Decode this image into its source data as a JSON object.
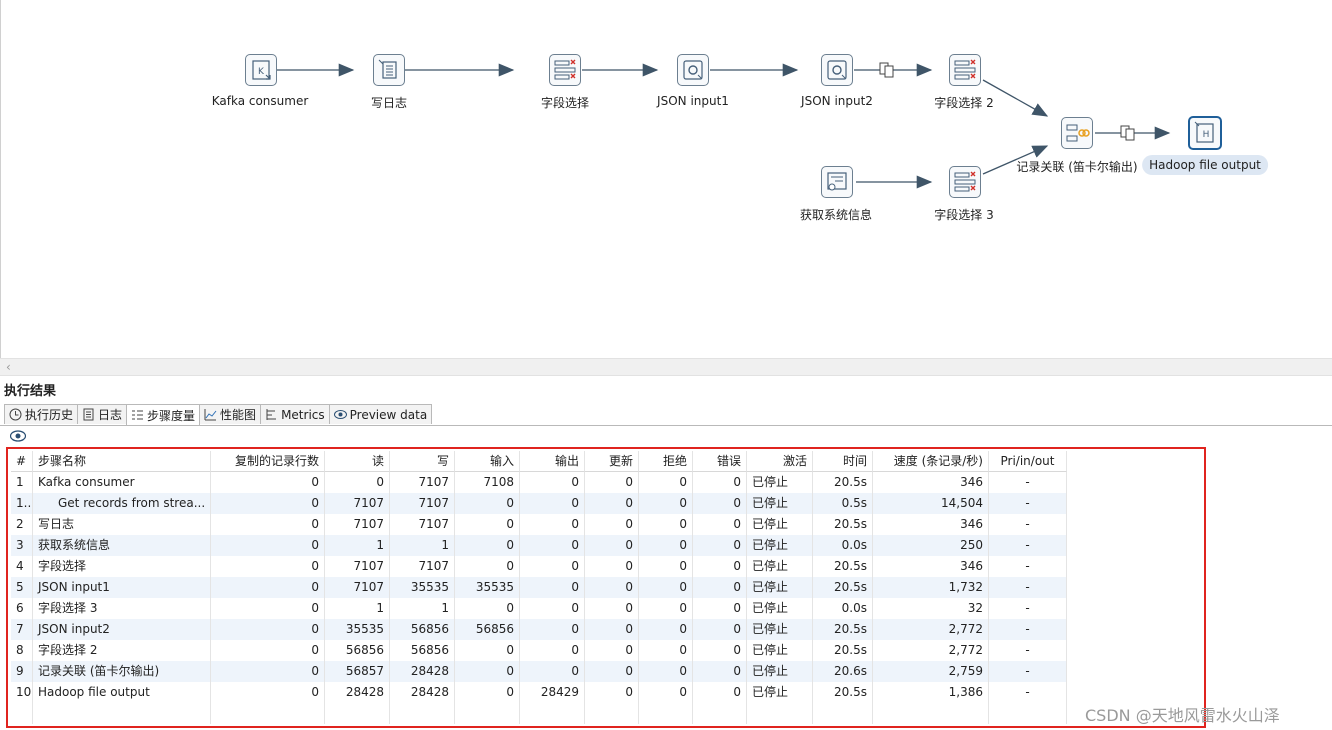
{
  "flow": {
    "nodes": [
      {
        "id": "kafka",
        "label": "Kafka consumer",
        "icon": "kafka-consumer-icon"
      },
      {
        "id": "log",
        "label": "写日志",
        "icon": "write-log-icon"
      },
      {
        "id": "sel1",
        "label": "字段选择",
        "icon": "select-values-icon"
      },
      {
        "id": "json1",
        "label": "JSON input1",
        "icon": "json-input-icon"
      },
      {
        "id": "json2",
        "label": "JSON input2",
        "icon": "json-input-icon"
      },
      {
        "id": "sel2",
        "label": "字段选择 2",
        "icon": "select-values-icon"
      },
      {
        "id": "join",
        "label": "记录关联 (笛卡尔输出)",
        "icon": "join-rows-icon"
      },
      {
        "id": "hadoop",
        "label": "Hadoop file output",
        "icon": "hadoop-output-icon"
      },
      {
        "id": "sysinfo",
        "label": "获取系统信息",
        "icon": "system-info-icon"
      },
      {
        "id": "sel3",
        "label": "字段选择 3",
        "icon": "select-values-icon"
      }
    ]
  },
  "results": {
    "title": "执行结果",
    "tabs": [
      {
        "label": "执行历史",
        "icon": "history-icon"
      },
      {
        "label": "日志",
        "icon": "log-icon"
      },
      {
        "label": "步骤度量",
        "icon": "step-metrics-icon",
        "active": true
      },
      {
        "label": "性能图",
        "icon": "performance-graph-icon"
      },
      {
        "label": "Metrics",
        "icon": "metrics-icon"
      },
      {
        "label": "Preview data",
        "icon": "preview-eye-icon"
      }
    ],
    "columns": [
      "#",
      "步骤名称",
      "复制的记录行数",
      "读",
      "写",
      "输入",
      "输出",
      "更新",
      "拒绝",
      "错误",
      "激活",
      "时间",
      "速度 (条记录/秒)",
      "Pri/in/out"
    ],
    "rows": [
      [
        "1",
        "Kafka consumer",
        "0",
        "0",
        "7107",
        "7108",
        "0",
        "0",
        "0",
        "0",
        "已停止",
        "20.5s",
        "346",
        "-"
      ],
      [
        "1...",
        "Get records from strea...",
        "0",
        "7107",
        "7107",
        "0",
        "0",
        "0",
        "0",
        "0",
        "已停止",
        "0.5s",
        "14,504",
        "-"
      ],
      [
        "2",
        "写日志",
        "0",
        "7107",
        "7107",
        "0",
        "0",
        "0",
        "0",
        "0",
        "已停止",
        "20.5s",
        "346",
        "-"
      ],
      [
        "3",
        "获取系统信息",
        "0",
        "1",
        "1",
        "0",
        "0",
        "0",
        "0",
        "0",
        "已停止",
        "0.0s",
        "250",
        "-"
      ],
      [
        "4",
        "字段选择",
        "0",
        "7107",
        "7107",
        "0",
        "0",
        "0",
        "0",
        "0",
        "已停止",
        "20.5s",
        "346",
        "-"
      ],
      [
        "5",
        "JSON input1",
        "0",
        "7107",
        "35535",
        "35535",
        "0",
        "0",
        "0",
        "0",
        "已停止",
        "20.5s",
        "1,732",
        "-"
      ],
      [
        "6",
        "字段选择 3",
        "0",
        "1",
        "1",
        "0",
        "0",
        "0",
        "0",
        "0",
        "已停止",
        "0.0s",
        "32",
        "-"
      ],
      [
        "7",
        "JSON input2",
        "0",
        "35535",
        "56856",
        "56856",
        "0",
        "0",
        "0",
        "0",
        "已停止",
        "20.5s",
        "2,772",
        "-"
      ],
      [
        "8",
        "字段选择 2",
        "0",
        "56856",
        "56856",
        "0",
        "0",
        "0",
        "0",
        "0",
        "已停止",
        "20.5s",
        "2,772",
        "-"
      ],
      [
        "9",
        "记录关联 (笛卡尔输出)",
        "0",
        "56857",
        "28428",
        "0",
        "0",
        "0",
        "0",
        "0",
        "已停止",
        "20.6s",
        "2,759",
        "-"
      ],
      [
        "10",
        "Hadoop file output",
        "0",
        "28428",
        "28428",
        "0",
        "28429",
        "0",
        "0",
        "0",
        "已停止",
        "20.5s",
        "1,386",
        "-"
      ]
    ]
  },
  "watermark": "CSDN @天地风雷水火山泽",
  "colors": {
    "highlight_box": "#e0241f",
    "node_border": "#6c7f90",
    "selected_node": "#1f5f99",
    "link": "#3f5568"
  }
}
